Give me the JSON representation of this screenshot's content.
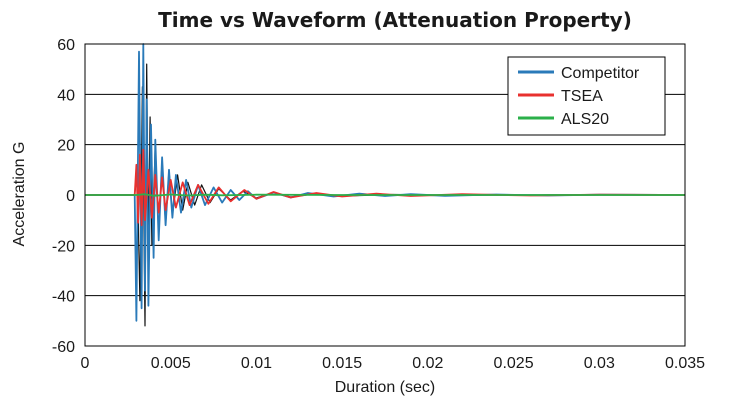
{
  "chart_data": {
    "type": "line",
    "title": "Time vs Waveform (Attenuation Property)",
    "xlabel": "Duration (sec)",
    "ylabel": "Acceleration G",
    "xlim": [
      0,
      0.035
    ],
    "ylim": [
      -60,
      60
    ],
    "x_ticks": [
      0,
      0.005,
      0.01,
      0.015,
      0.02,
      0.025,
      0.03,
      0.035
    ],
    "x_tick_labels": [
      "0",
      "0.005",
      "0.01",
      "0.015",
      "0.02",
      "0.025",
      "0.03",
      "0.035"
    ],
    "y_ticks": [
      -60,
      -40,
      -20,
      0,
      20,
      40,
      60
    ],
    "y_tick_labels": [
      "-60",
      "-40",
      "-20",
      "0",
      "20",
      "40",
      "60"
    ],
    "grid": "horizontal",
    "legend_position": "top-right",
    "series": [
      {
        "name": "Competitor",
        "color": "#2a7ab9",
        "x": [
          0,
          0.0029,
          0.003,
          0.00315,
          0.0033,
          0.0034,
          0.0035,
          0.0036,
          0.0037,
          0.00385,
          0.004,
          0.0041,
          0.0043,
          0.0045,
          0.0047,
          0.0049,
          0.0051,
          0.0053,
          0.0056,
          0.0059,
          0.0062,
          0.0066,
          0.007,
          0.0075,
          0.008,
          0.0085,
          0.009,
          0.0095,
          0.01,
          0.011,
          0.012,
          0.013,
          0.0145,
          0.016,
          0.0175,
          0.019,
          0.021,
          0.024,
          0.027,
          0.03,
          0.035
        ],
        "values": [
          0,
          0,
          -50,
          57,
          -45,
          60,
          -38,
          38,
          -44,
          28,
          -25,
          22,
          -18,
          15,
          -12,
          10,
          -9,
          8,
          -7,
          6,
          -5,
          4,
          -4,
          3,
          -3,
          2,
          -2,
          1.5,
          -1.5,
          1,
          -1,
          0.8,
          -0.6,
          0.5,
          -0.4,
          0.3,
          -0.3,
          0.2,
          -0.2,
          0.1,
          0
        ]
      },
      {
        "name": "TSEA",
        "color": "#e8312f",
        "x": [
          0,
          0.0029,
          0.003,
          0.0031,
          0.0032,
          0.0033,
          0.0034,
          0.0035,
          0.0037,
          0.0039,
          0.0041,
          0.0043,
          0.0045,
          0.0047,
          0.005,
          0.0053,
          0.0057,
          0.0061,
          0.0066,
          0.0072,
          0.0078,
          0.0085,
          0.0093,
          0.01,
          0.011,
          0.012,
          0.0135,
          0.015,
          0.017,
          0.019,
          0.022,
          0.026,
          0.03,
          0.035
        ],
        "values": [
          0,
          0,
          12,
          -11,
          16,
          -12,
          18,
          -10,
          10,
          -9,
          8,
          -7,
          7,
          -6,
          6,
          -5,
          5,
          -4,
          4,
          -3.5,
          3,
          -2.5,
          2,
          -1.5,
          1.2,
          -1,
          0.8,
          -0.6,
          0.5,
          -0.4,
          0.3,
          -0.2,
          0.1,
          0
        ]
      },
      {
        "name": "ALS20",
        "color": "#2bb04a",
        "x": [
          0,
          0.003,
          0.0035,
          0.004,
          0.005,
          0.006,
          0.007,
          0.008,
          0.01,
          0.015,
          0.02,
          0.025,
          0.03,
          0.035
        ],
        "values": [
          0,
          0,
          0.3,
          -0.3,
          0.2,
          -0.2,
          0.1,
          -0.1,
          0.1,
          0,
          0,
          0,
          0,
          0
        ]
      },
      {
        "color": "#111111",
        "x": [
          0,
          0.0029,
          0.00305,
          0.0032,
          0.00335,
          0.0035,
          0.0036,
          0.0037,
          0.0038,
          0.0039,
          0.0041,
          0.0043,
          0.0045,
          0.0047,
          0.0049,
          0.0051,
          0.0054,
          0.0057,
          0.006,
          0.0064,
          0.0068,
          0.0073,
          0.0078,
          0.0085,
          0.0092,
          0.01,
          0.011,
          0.012,
          0.0135,
          0.015,
          0.018,
          0.022,
          0.027,
          0.035
        ],
        "values": [
          0,
          0,
          10,
          -42,
          43,
          -52,
          52,
          -22,
          31,
          -20,
          20,
          -16,
          14,
          -12,
          10,
          -8,
          8,
          -6,
          5,
          -4,
          4,
          -3,
          2.5,
          -2,
          1.5,
          -1.2,
          1,
          -0.8,
          0.5,
          -0.4,
          0.2,
          -0.1,
          0.05,
          0
        ]
      }
    ]
  }
}
